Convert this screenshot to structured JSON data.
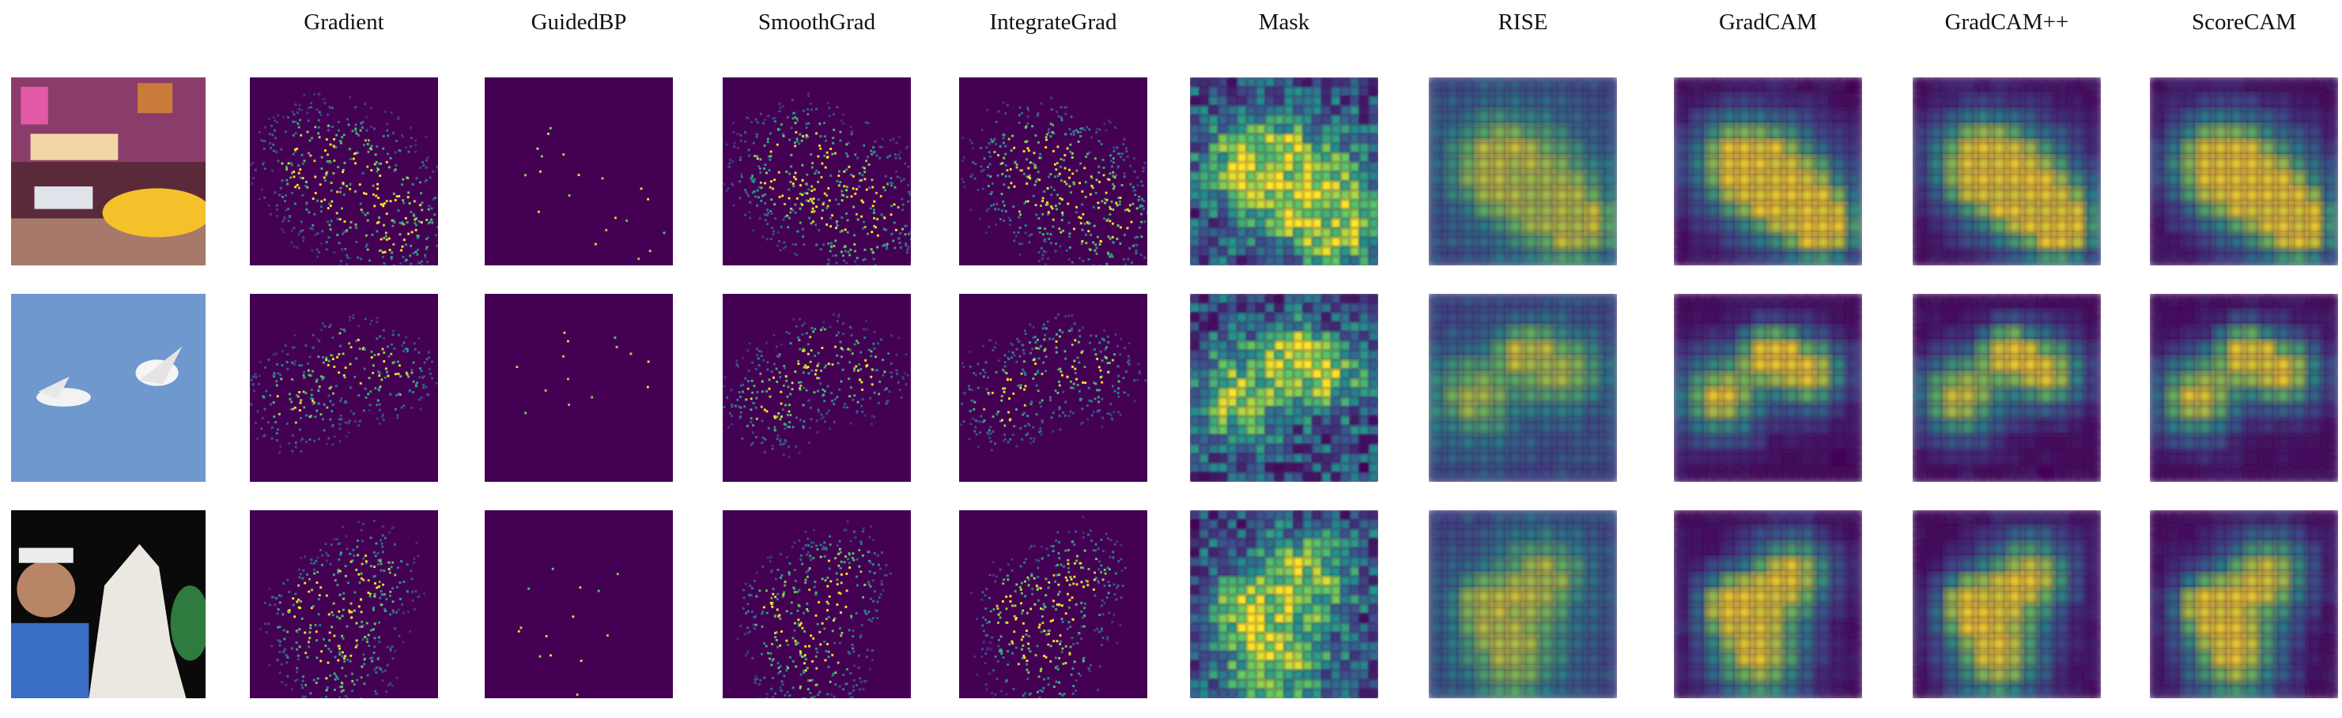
{
  "figure": {
    "columns": [
      {
        "label": "Gradient",
        "method": "gradient"
      },
      {
        "label": "GuidedBP",
        "method": "guidedbp"
      },
      {
        "label": "SmoothGrad",
        "method": "smoothgrad"
      },
      {
        "label": "IntegrateGrad",
        "method": "integrategrad"
      },
      {
        "label": "Mask",
        "method": "mask"
      },
      {
        "label": "RISE",
        "method": "rise"
      },
      {
        "label": "GradCAM",
        "method": "gradcam"
      },
      {
        "label": "GradCAM++",
        "method": "gradcampp"
      },
      {
        "label": "ScoreCAM",
        "method": "scorecam"
      }
    ],
    "rows": [
      {
        "input_image": "times-square-taxi-photo"
      },
      {
        "input_image": "two-seagulls-sky-photo"
      },
      {
        "input_image": "woman-and-white-wolf-photo"
      }
    ],
    "colormap": [
      "#440154",
      "#3b528b",
      "#21918c",
      "#5ec962",
      "#fde725"
    ]
  }
}
